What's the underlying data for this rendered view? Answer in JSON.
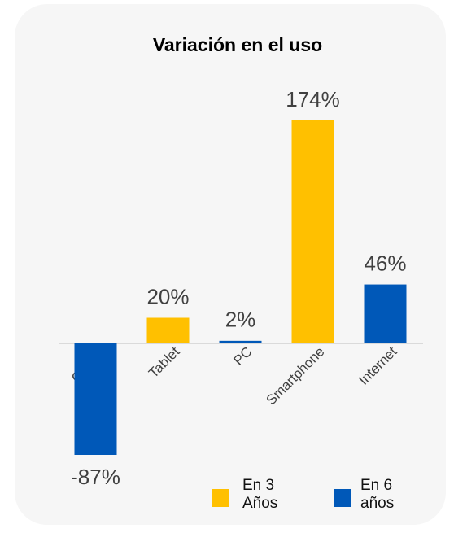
{
  "chart_data": {
    "type": "bar",
    "title": "Variación en el uso",
    "categories": [
      "Celular",
      "Tablet",
      "PC",
      "Smartphone",
      "Internet"
    ],
    "series": [
      {
        "name": "En 3 Años",
        "color": "#FFC000",
        "values": [
          null,
          20,
          null,
          174,
          null
        ],
        "value_labels": [
          null,
          "20%",
          null,
          "174%",
          null
        ]
      },
      {
        "name": "En 6 años",
        "color": "#0058B8",
        "values": [
          -87,
          null,
          2,
          null,
          46
        ],
        "value_labels": [
          "-87%",
          null,
          "2%",
          null,
          "46%"
        ]
      }
    ],
    "legend": "bottom-right"
  }
}
